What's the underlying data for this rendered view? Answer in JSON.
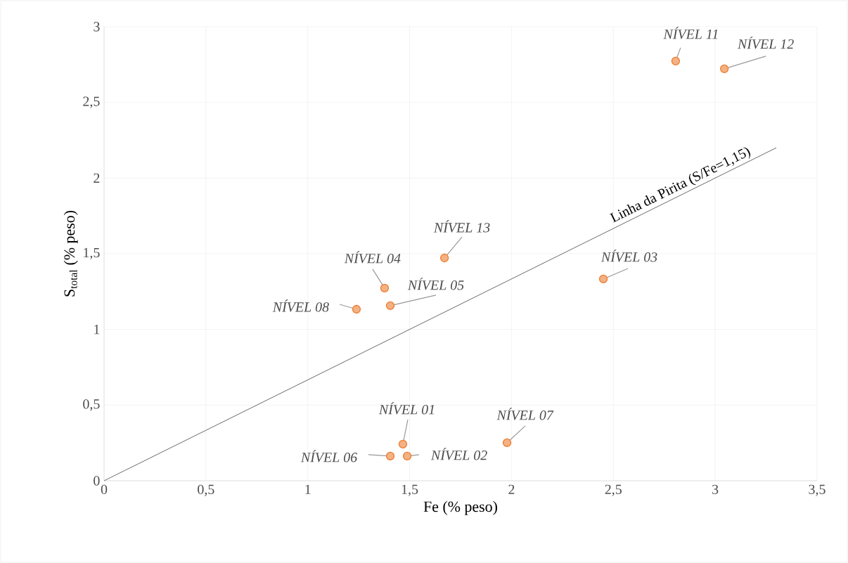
{
  "chart_data": {
    "type": "scatter",
    "xlabel": "Fe (% peso)",
    "ylabel": "S$_{total}$ (% peso)",
    "xlim": [
      0,
      3.5
    ],
    "ylim": [
      0,
      3
    ],
    "xticks": [
      0,
      {
        "value": 0.5,
        "label": "0,5"
      },
      1,
      {
        "value": 1.5,
        "label": "1,5"
      },
      2,
      {
        "value": 2.5,
        "label": "2,5"
      },
      3,
      {
        "value": 3.5,
        "label": "3,5"
      }
    ],
    "yticks": [
      0,
      {
        "value": 0.5,
        "label": "0,5"
      },
      1,
      {
        "value": 1.5,
        "label": "1,5"
      },
      2,
      {
        "value": 2.5,
        "label": "2,5"
      },
      3
    ],
    "grid": true,
    "series": [
      {
        "marker": "circle",
        "color": "#ed7d31",
        "x": [
          1.467,
          1.488,
          2.451,
          1.377,
          1.405,
          1.405,
          1.978,
          1.239,
          2.806,
          3.045,
          1.671
        ],
        "values": [
          0.242,
          0.163,
          1.333,
          1.273,
          1.157,
          0.163,
          0.251,
          1.133,
          2.773,
          2.722,
          1.472
        ]
      },
      {
        "type": "line",
        "marker": "none",
        "color": "#595959",
        "x": [
          0,
          3.3
        ],
        "values": [
          0,
          2.2
        ]
      }
    ],
    "annotations": [
      {
        "text": "*NÍVEL 01*",
        "x": 1.467,
        "y": 0.242
      },
      {
        "text": "*NÍVEL 02*",
        "x": 1.488,
        "y": 0.163
      },
      {
        "text": "*NÍVEL 03*",
        "x": 2.451,
        "y": 1.333
      },
      {
        "text": "*NÍVEL 04*",
        "x": 1.377,
        "y": 1.273
      },
      {
        "text": "*NÍVEL 05*",
        "x": 1.405,
        "y": 1.157
      },
      {
        "text": "*NÍVEL 06*",
        "x": 1.405,
        "y": 0.163
      },
      {
        "text": "*NÍVEL 07*",
        "x": 1.978,
        "y": 0.251
      },
      {
        "text": "*NÍVEL 08*",
        "x": 1.239,
        "y": 1.133
      },
      {
        "text": "*NÍVEL 11*",
        "x": 2.806,
        "y": 2.773
      },
      {
        "text": "*NÍVEL 12*",
        "x": 3.045,
        "y": 2.722
      },
      {
        "text": "*NÍVEL 13*",
        "x": 1.671,
        "y": 1.472
      },
      {
        "text": "Linha da Pirita (S/Fe=1,15)",
        "x": 2.85,
        "y": 1.9
      }
    ]
  }
}
